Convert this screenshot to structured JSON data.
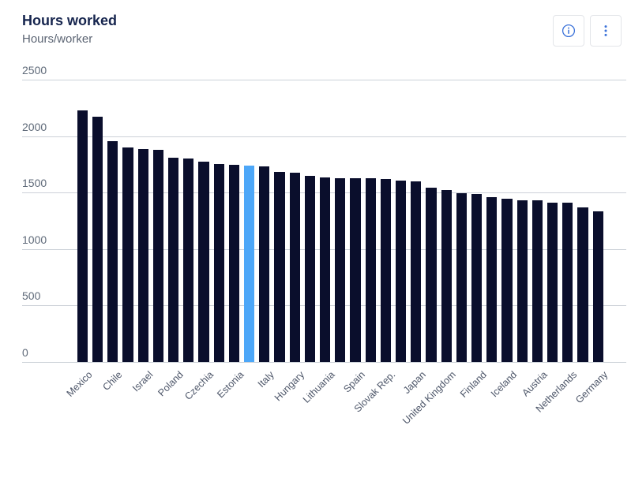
{
  "header": {
    "title": "Hours worked",
    "subtitle": "Hours/worker",
    "actions": [
      {
        "icon": "info-icon",
        "label": "info"
      },
      {
        "icon": "kebab-menu-icon",
        "label": "more options"
      }
    ]
  },
  "colors": {
    "title": "#16254e",
    "subtitle": "#5b6473",
    "tick": "#5f6a79",
    "axis_label": "#4d5669",
    "grid": "#ccd1d8",
    "bar": "#0a0e2c",
    "highlight": "#4da7f8",
    "icon": "#3b72d9",
    "button_border": "#e3e5e9"
  },
  "chart_data": {
    "type": "bar",
    "title": "Hours worked",
    "subtitle": "Hours/worker",
    "xlabel": "",
    "ylabel": "Hours/worker",
    "ylim": [
      0,
      2500
    ],
    "yticks": [
      0,
      500,
      1000,
      1500,
      2000,
      2500
    ],
    "grid": true,
    "legend": false,
    "note": "bars sorted descending; unlabeled bars appear between labeled ones; one bar highlighted in blue",
    "bars": [
      {
        "label": "Mexico",
        "value": 2225,
        "highlighted": false
      },
      {
        "label": "",
        "value": 2170,
        "highlighted": false
      },
      {
        "label": "Chile",
        "value": 1955,
        "highlighted": false
      },
      {
        "label": "",
        "value": 1900,
        "highlighted": false
      },
      {
        "label": "Israel",
        "value": 1885,
        "highlighted": false
      },
      {
        "label": "",
        "value": 1878,
        "highlighted": false
      },
      {
        "label": "Poland",
        "value": 1808,
        "highlighted": false
      },
      {
        "label": "",
        "value": 1800,
        "highlighted": false
      },
      {
        "label": "Czechia",
        "value": 1772,
        "highlighted": false
      },
      {
        "label": "",
        "value": 1756,
        "highlighted": false
      },
      {
        "label": "Estonia",
        "value": 1745,
        "highlighted": false
      },
      {
        "label": "",
        "value": 1742,
        "highlighted": true
      },
      {
        "label": "Italy",
        "value": 1731,
        "highlighted": false
      },
      {
        "label": "",
        "value": 1685,
        "highlighted": false
      },
      {
        "label": "Hungary",
        "value": 1677,
        "highlighted": false
      },
      {
        "label": "",
        "value": 1648,
        "highlighted": false
      },
      {
        "label": "Lithuania",
        "value": 1634,
        "highlighted": false
      },
      {
        "label": "",
        "value": 1630,
        "highlighted": false
      },
      {
        "label": "Spain",
        "value": 1628,
        "highlighted": false
      },
      {
        "label": "",
        "value": 1624,
        "highlighted": false
      },
      {
        "label": "Slovak Rep.",
        "value": 1622,
        "highlighted": false
      },
      {
        "label": "",
        "value": 1607,
        "highlighted": false
      },
      {
        "label": "Japan",
        "value": 1600,
        "highlighted": false
      },
      {
        "label": "",
        "value": 1542,
        "highlighted": false
      },
      {
        "label": "United Kingdom",
        "value": 1521,
        "highlighted": false
      },
      {
        "label": "",
        "value": 1491,
        "highlighted": false
      },
      {
        "label": "Finland",
        "value": 1488,
        "highlighted": false
      },
      {
        "label": "",
        "value": 1461,
        "highlighted": false
      },
      {
        "label": "Iceland",
        "value": 1443,
        "highlighted": false
      },
      {
        "label": "",
        "value": 1435,
        "highlighted": false
      },
      {
        "label": "Austria",
        "value": 1433,
        "highlighted": false
      },
      {
        "label": "",
        "value": 1412,
        "highlighted": false
      },
      {
        "label": "Netherlands",
        "value": 1408,
        "highlighted": false
      },
      {
        "label": "",
        "value": 1372,
        "highlighted": false
      },
      {
        "label": "Germany",
        "value": 1337,
        "highlighted": false
      }
    ]
  }
}
